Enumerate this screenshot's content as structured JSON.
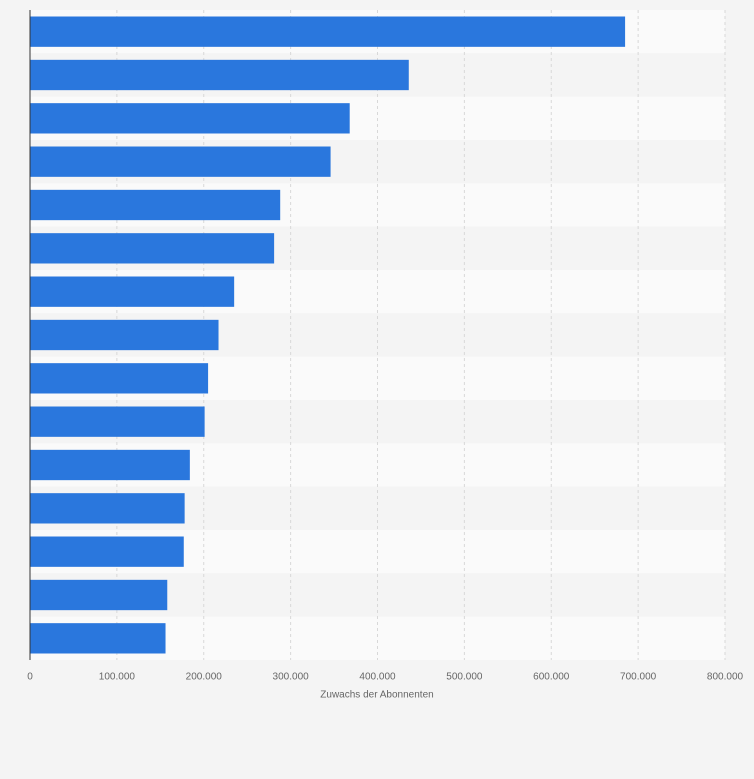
{
  "chart_data": {
    "type": "barh",
    "x_label": "Zuwachs der Abonnenten",
    "categories": [
      null,
      null,
      null,
      null,
      null,
      null,
      null,
      null,
      null,
      null,
      null,
      null,
      null,
      null,
      null
    ],
    "values": [
      685000,
      436000,
      368000,
      346000,
      288000,
      281000,
      235000,
      217000,
      205000,
      201000,
      184000,
      178000,
      177000,
      158000,
      156000
    ],
    "color": "#2a77dd",
    "xlim": [
      0,
      800000
    ],
    "xticks": [
      0,
      {
        "value": 100000,
        "label": "100.000"
      },
      {
        "value": 200000,
        "label": "200.000"
      },
      {
        "value": 300000,
        "label": "300.000"
      },
      {
        "value": 400000,
        "label": "400.000"
      },
      {
        "value": 500000,
        "label": "500.000"
      },
      {
        "value": 600000,
        "label": "600.000"
      },
      {
        "value": 700000,
        "label": "700.000"
      },
      {
        "value": 800000,
        "label": "800.000"
      }
    ],
    "grid": true
  }
}
